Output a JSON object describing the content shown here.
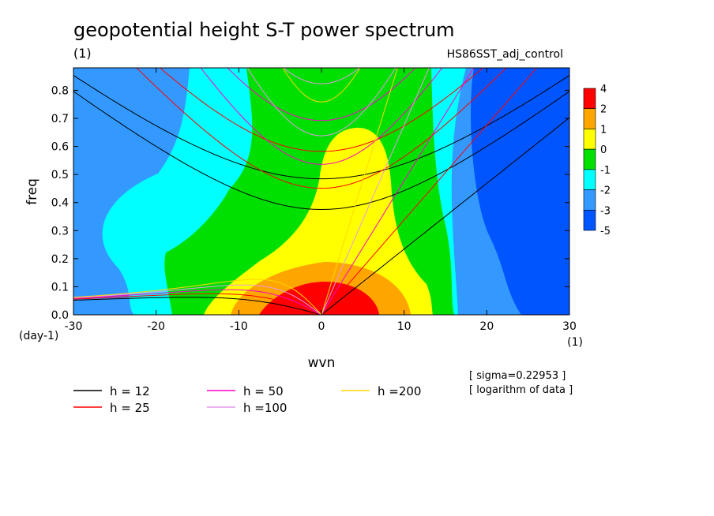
{
  "chart_data": {
    "type": "heatmap",
    "title": "geopotential height S-T power spectrum",
    "subtitle_left": "(1)",
    "subtitle_right": "HS86SST_adj_control",
    "xlabel": "wvn",
    "ylabel": "freq",
    "xunit": "(1)",
    "yunit": "(day-1)",
    "xlim": [
      -30,
      30
    ],
    "ylim": [
      0,
      0.88
    ],
    "xticks": [
      -30,
      -20,
      -10,
      0,
      10,
      20,
      30
    ],
    "yticks": [
      0.0,
      0.1,
      0.2,
      0.3,
      0.4,
      0.5,
      0.6,
      0.7,
      0.8
    ],
    "colorbar": {
      "labels": [
        "4",
        "2",
        "1",
        "0",
        "-1",
        "-2",
        "-3",
        "-5"
      ],
      "colors": [
        "#ff0000",
        "#ffa500",
        "#ffff00",
        "#00e000",
        "#00ffff",
        "#3399ff",
        "#0055ff"
      ]
    },
    "notes": [
      "[ sigma=0.22953 ]",
      "[ logarithm of data ]"
    ],
    "dispersion_curves": [
      {
        "name": "h = 12",
        "color": "#000000"
      },
      {
        "name": "h = 25",
        "color": "#ff0000"
      },
      {
        "name": "h = 50",
        "color": "#ff00cc"
      },
      {
        "name": "h =100",
        "color": "#e699e6"
      },
      {
        "name": "h =200",
        "color": "#ffd700"
      }
    ]
  }
}
